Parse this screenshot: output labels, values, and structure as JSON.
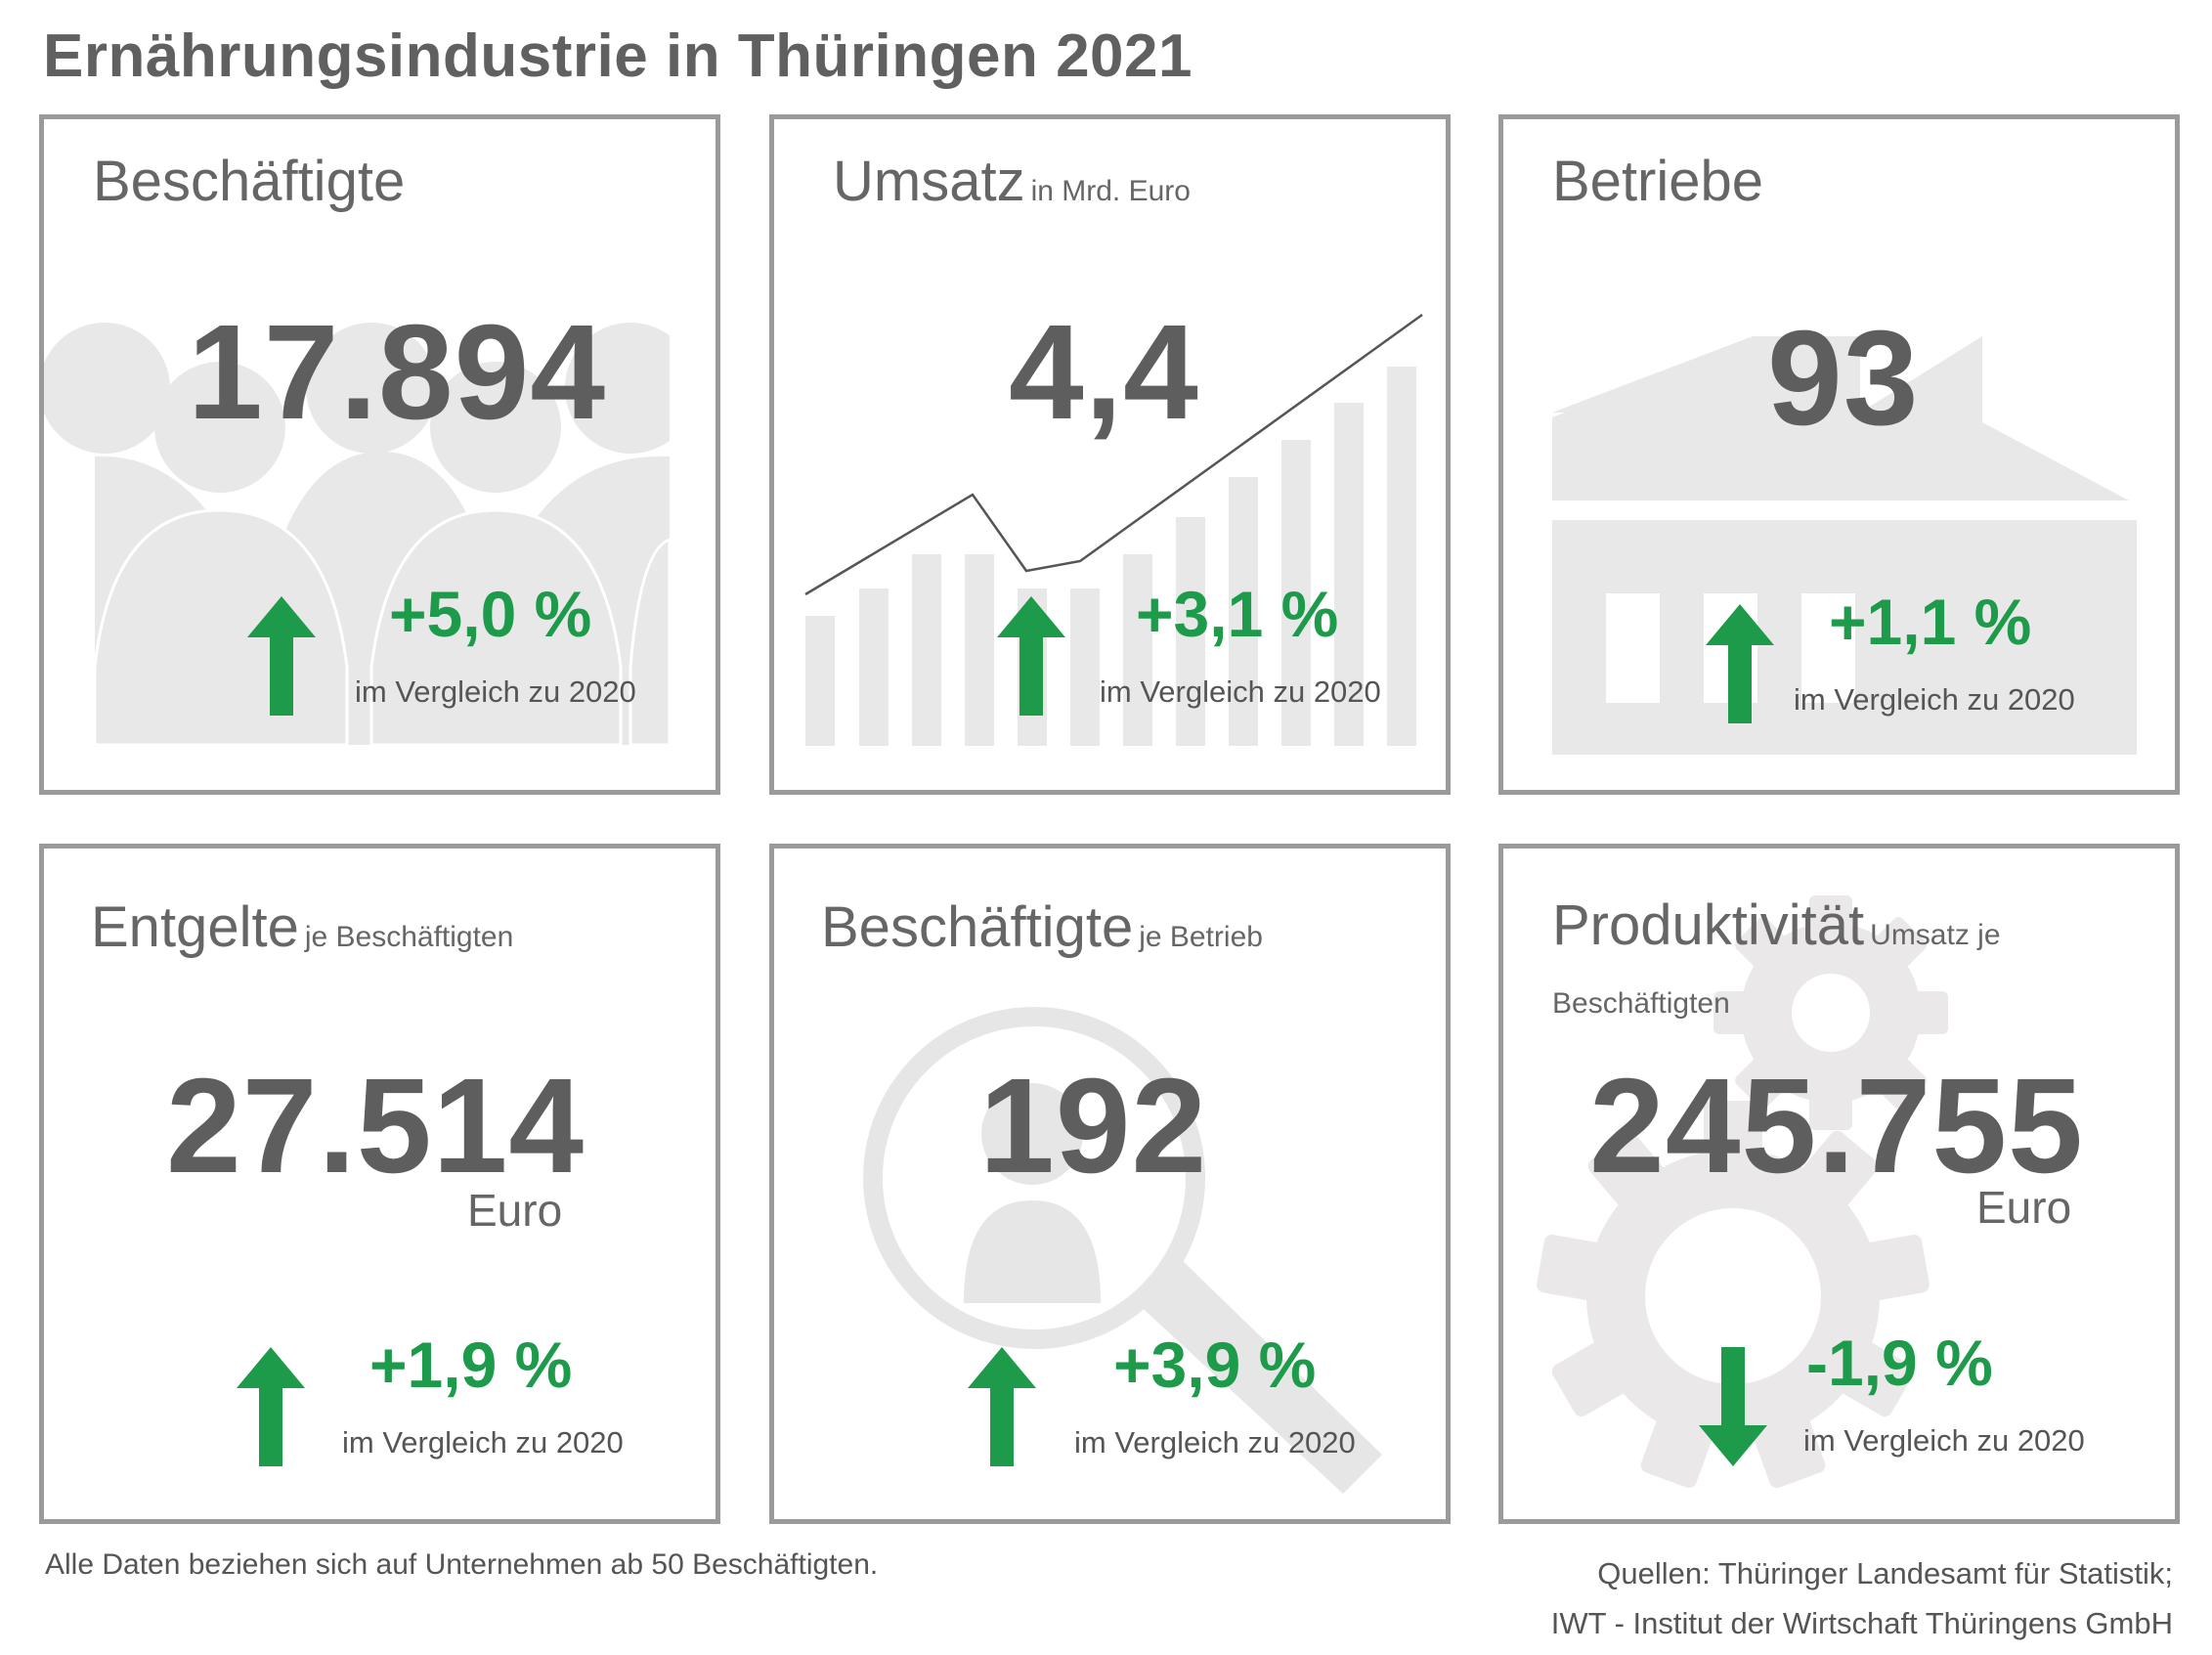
{
  "title": "Ernährungsindustrie in Thüringen 2021",
  "colors": {
    "positive": "#1e9a4b",
    "frame": "#9a9a9a",
    "icon": "#e6e6e6"
  },
  "cards": [
    {
      "title": "Beschäftigte",
      "subtitle": "",
      "value": "17.894",
      "unit": "",
      "change": "+5,0 %",
      "direction": "up",
      "compare": "im Vergleich zu 2020",
      "icon": "people-icon"
    },
    {
      "title": "Umsatz",
      "subtitle": "in Mrd. Euro",
      "value": "4,4",
      "unit": "",
      "change": "+3,1 %",
      "direction": "up",
      "compare": "im Vergleich zu 2020",
      "icon": "growth-chart-icon"
    },
    {
      "title": "Betriebe",
      "subtitle": "",
      "value": "93",
      "unit": "",
      "change": "+1,1 %",
      "direction": "up",
      "compare": "im Vergleich zu 2020",
      "icon": "factory-icon"
    },
    {
      "title": "Entgelte",
      "subtitle": "je Beschäftigten",
      "value": "27.514",
      "unit": "Euro",
      "change": "+1,9 %",
      "direction": "up",
      "compare": "im Vergleich zu 2020",
      "icon": ""
    },
    {
      "title": "Beschäftigte",
      "subtitle": "je Betrieb",
      "value": "192",
      "unit": "",
      "change": "+3,9 %",
      "direction": "up",
      "compare": "im Vergleich zu 2020",
      "icon": "person-search-icon"
    },
    {
      "title": "Produktivität",
      "subtitle": "Umsatz je Beschäftigten",
      "value": "245.755",
      "unit": "Euro",
      "change": "-1,9 %",
      "direction": "down",
      "compare": "im Vergleich zu 2020",
      "icon": "gears-icon"
    }
  ],
  "footnote": "Alle Daten beziehen sich auf Unternehmen ab 50 Beschäftigten.",
  "sources": [
    "Quellen: Thüringer Landesamt für Statistik;",
    "IWT - Institut der Wirtschaft Thüringens GmbH"
  ]
}
